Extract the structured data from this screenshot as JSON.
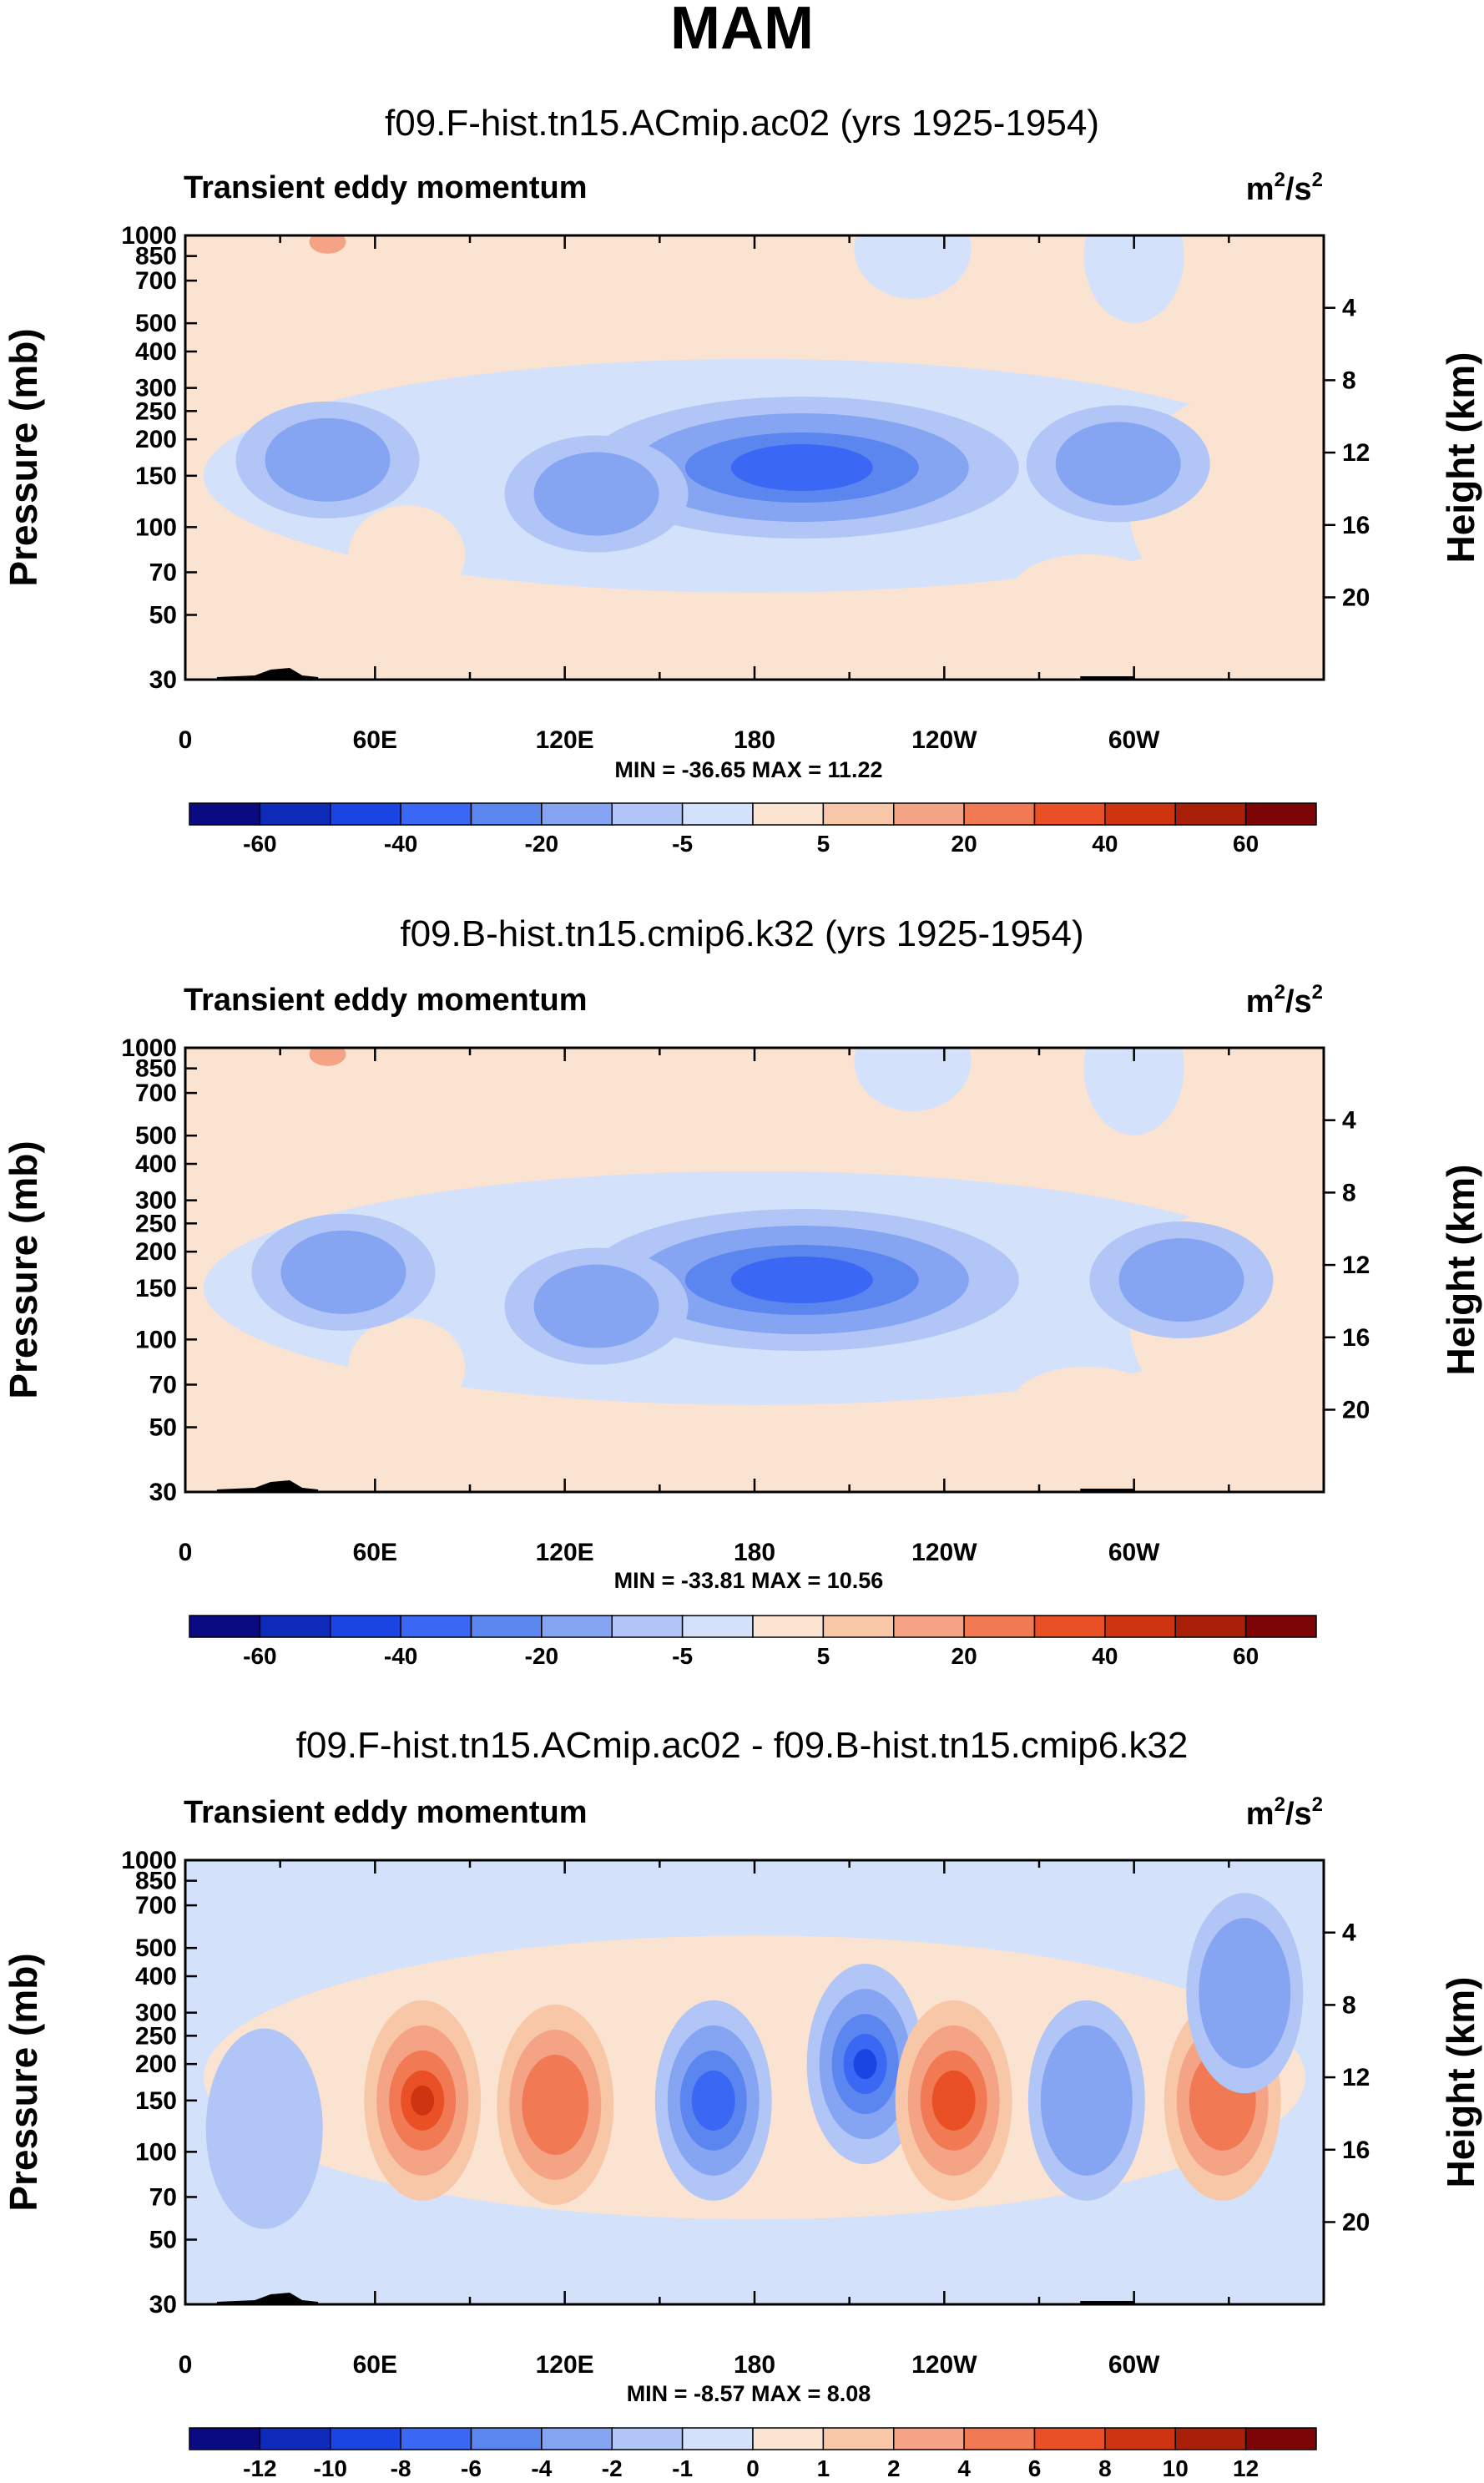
{
  "figure_title": "MAM",
  "colors": {
    "abs_scale": [
      "#0a0a82",
      "#0e2bb9",
      "#1a45e3",
      "#3a68f4",
      "#5c86ef",
      "#85a5f3",
      "#b1c6f6",
      "#d3e1fa",
      "#fbe3d1",
      "#f8c7a8",
      "#f4a484",
      "#f17a55",
      "#ea5026",
      "#cf3410",
      "#aa1f08",
      "#7d0505"
    ],
    "diff_scale": [
      "#0a0a82",
      "#0e2bb9",
      "#1a45e3",
      "#3a68f4",
      "#5c86ef",
      "#85a5f3",
      "#b1c6f6",
      "#d3e1fa",
      "#fbe3d1",
      "#f8c7a8",
      "#f4a484",
      "#f17a55",
      "#ea5026",
      "#cf3410",
      "#aa1f08",
      "#7d0505"
    ],
    "topography": "#000000"
  },
  "chart_data": [
    {
      "type": "heatmap",
      "title": "f09.F-hist.tn15.ACmip.ac02 (yrs 1925-1954)",
      "left_label": "Transient eddy momentum",
      "units_base": "m",
      "units_sup1": "2",
      "units_mid": "/s",
      "units_sup2": "2",
      "ylabel": "Pressure (mb)",
      "ylabel_right": "Height (km)",
      "y_ticks": [
        "30",
        "50",
        "70",
        "100",
        "150",
        "200",
        "250",
        "300",
        "400",
        "500",
        "700",
        "850",
        "1000"
      ],
      "y_ticks_right": [
        "20",
        "16",
        "12",
        "8",
        "4"
      ],
      "x_ticks": [
        "0",
        "60E",
        "120E",
        "180",
        "120W",
        "60W"
      ],
      "minmax": "MIN = -36.65  MAX = 11.22",
      "colorbar_labels": [
        "-60",
        "-40",
        "-20",
        "-5",
        "5",
        "20",
        "40",
        "60"
      ],
      "colorbar_levels": [
        -70,
        -60,
        -50,
        -40,
        -30,
        -20,
        -10,
        -5,
        0,
        5,
        10,
        20,
        30,
        40,
        50,
        60,
        70
      ],
      "xlim_deg_east": [
        0,
        360
      ],
      "ylim_mb": [
        1000,
        30
      ],
      "features": [
        {
          "kind": "negative",
          "lon_center": 195,
          "p_center_mb": 160,
          "value": -36.65
        },
        {
          "kind": "negative",
          "lon_center": 130,
          "p_center_mb": 130,
          "value": -20
        },
        {
          "kind": "negative",
          "lon_center": 45,
          "p_center_mb": 170,
          "value": -15
        },
        {
          "kind": "negative",
          "lon_center": 295,
          "p_center_mb": 165,
          "value": -15
        },
        {
          "kind": "positive",
          "lon_center": 45,
          "p_center_mb": 950,
          "value": 11.22
        }
      ]
    },
    {
      "type": "heatmap",
      "title": "f09.B-hist.tn15.cmip6.k32 (yrs 1925-1954)",
      "left_label": "Transient eddy momentum",
      "units_base": "m",
      "units_sup1": "2",
      "units_mid": "/s",
      "units_sup2": "2",
      "ylabel": "Pressure (mb)",
      "ylabel_right": "Height (km)",
      "y_ticks": [
        "30",
        "50",
        "70",
        "100",
        "150",
        "200",
        "250",
        "300",
        "400",
        "500",
        "700",
        "850",
        "1000"
      ],
      "y_ticks_right": [
        "20",
        "16",
        "12",
        "8",
        "4"
      ],
      "x_ticks": [
        "0",
        "60E",
        "120E",
        "180",
        "120W",
        "60W"
      ],
      "minmax": "MIN = -33.81  MAX = 10.56",
      "colorbar_labels": [
        "-60",
        "-40",
        "-20",
        "-5",
        "5",
        "20",
        "40",
        "60"
      ],
      "colorbar_levels": [
        -70,
        -60,
        -50,
        -40,
        -30,
        -20,
        -10,
        -5,
        0,
        5,
        10,
        20,
        30,
        40,
        50,
        60,
        70
      ],
      "xlim_deg_east": [
        0,
        360
      ],
      "ylim_mb": [
        1000,
        30
      ],
      "features": [
        {
          "kind": "negative",
          "lon_center": 195,
          "p_center_mb": 160,
          "value": -33.81
        },
        {
          "kind": "negative",
          "lon_center": 130,
          "p_center_mb": 130,
          "value": -18
        },
        {
          "kind": "negative",
          "lon_center": 50,
          "p_center_mb": 170,
          "value": -14
        },
        {
          "kind": "negative",
          "lon_center": 315,
          "p_center_mb": 160,
          "value": -13
        },
        {
          "kind": "positive",
          "lon_center": 45,
          "p_center_mb": 950,
          "value": 10.56
        }
      ]
    },
    {
      "type": "heatmap",
      "title": "f09.F-hist.tn15.ACmip.ac02 - f09.B-hist.tn15.cmip6.k32",
      "left_label": "Transient eddy momentum",
      "units_base": "m",
      "units_sup1": "2",
      "units_mid": "/s",
      "units_sup2": "2",
      "ylabel": "Pressure (mb)",
      "ylabel_right": "Height (km)",
      "y_ticks": [
        "30",
        "50",
        "70",
        "100",
        "150",
        "200",
        "250",
        "300",
        "400",
        "500",
        "700",
        "850",
        "1000"
      ],
      "y_ticks_right": [
        "20",
        "16",
        "12",
        "8",
        "4"
      ],
      "x_ticks": [
        "0",
        "60E",
        "120E",
        "180",
        "120W",
        "60W"
      ],
      "minmax": "MIN = -8.57  MAX = 8.08",
      "colorbar_labels": [
        "-12",
        "-10",
        "-8",
        "-6",
        "-4",
        "-2",
        "-1",
        "0",
        "1",
        "2",
        "4",
        "6",
        "8",
        "10",
        "12"
      ],
      "colorbar_levels": [
        -14,
        -12,
        -10,
        -8,
        -6,
        -4,
        -2,
        -1,
        0,
        1,
        2,
        4,
        6,
        8,
        10,
        12,
        14
      ],
      "xlim_deg_east": [
        0,
        360
      ],
      "ylim_mb": [
        1000,
        30
      ],
      "features": [
        {
          "kind": "positive",
          "lon_center": 75,
          "p_center_mb": 150,
          "value": 8.08
        },
        {
          "kind": "positive",
          "lon_center": 117,
          "p_center_mb": 145,
          "value": 6
        },
        {
          "kind": "negative",
          "lon_center": 167,
          "p_center_mb": 150,
          "value": -7
        },
        {
          "kind": "negative",
          "lon_center": 215,
          "p_center_mb": 200,
          "value": -8.57
        },
        {
          "kind": "positive",
          "lon_center": 243,
          "p_center_mb": 150,
          "value": 7
        },
        {
          "kind": "negative",
          "lon_center": 285,
          "p_center_mb": 150,
          "value": -4
        },
        {
          "kind": "positive",
          "lon_center": 328,
          "p_center_mb": 150,
          "value": 6
        },
        {
          "kind": "negative",
          "lon_center": 335,
          "p_center_mb": 350,
          "value": -4
        },
        {
          "kind": "negative",
          "lon_center": 25,
          "p_center_mb": 120,
          "value": -3
        }
      ]
    }
  ]
}
